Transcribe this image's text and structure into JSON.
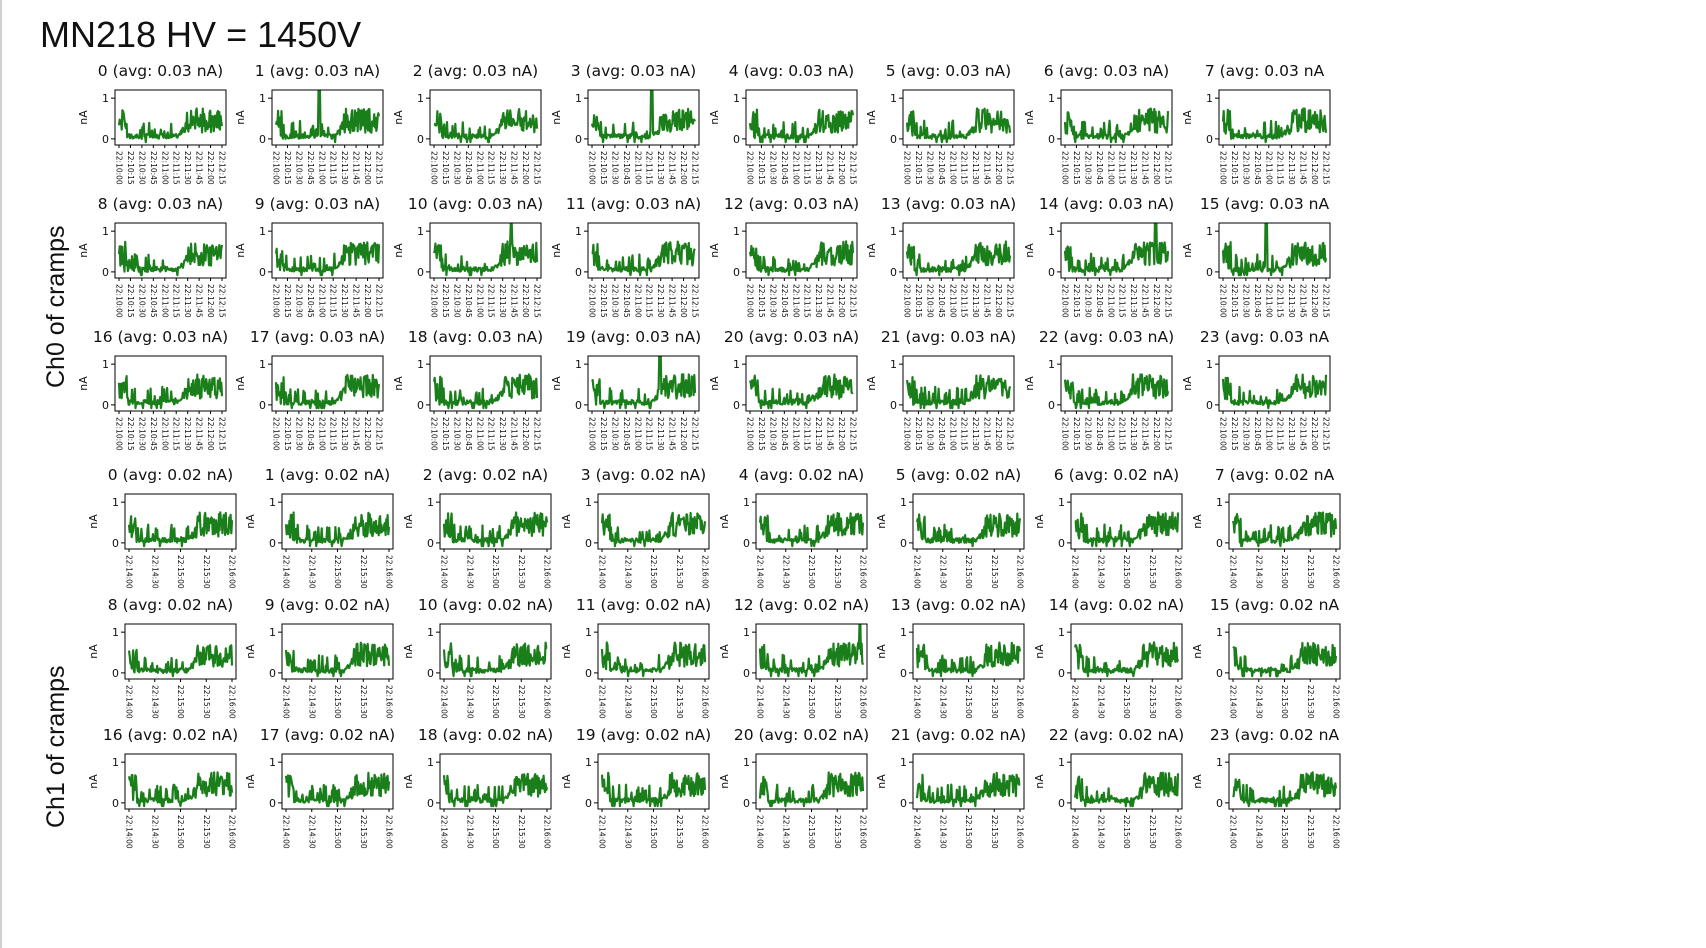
{
  "slide": {
    "title": "MN218 HV = 1450V",
    "group_labels": {
      "ch0": "Ch0 of cramps",
      "ch1": "Ch1 of cramps"
    }
  },
  "colors": {
    "series": "#1a7f1a",
    "axis": "#000000",
    "background": "#ffffff"
  },
  "chart_data": [
    {
      "group": "Ch0 of cramps",
      "type": "line",
      "ylabel": "nA",
      "ylim": [
        -0.15,
        1.2
      ],
      "yticks": [
        0,
        1
      ],
      "xticks": [
        "22:10:00",
        "22:10:15",
        "22:10:30",
        "22:10:45",
        "22:11:00",
        "22:11:15",
        "22:11:30",
        "22:11:45",
        "22:12:00",
        "22:12:15"
      ],
      "panels": [
        {
          "channel": 0,
          "title": "0 (avg: 0.03 nA)",
          "spike_at": null
        },
        {
          "channel": 1,
          "title": "1 (avg: 0.03 nA)",
          "spike_at": 0.42
        },
        {
          "channel": 2,
          "title": "2 (avg: 0.03 nA)",
          "spike_at": null
        },
        {
          "channel": 3,
          "title": "3 (avg: 0.03 nA)",
          "spike_at": 0.58
        },
        {
          "channel": 4,
          "title": "4 (avg: 0.03 nA)",
          "spike_at": null
        },
        {
          "channel": 5,
          "title": "5 (avg: 0.03 nA)",
          "spike_at": null
        },
        {
          "channel": 6,
          "title": "6 (avg: 0.03 nA)",
          "spike_at": null
        },
        {
          "channel": 7,
          "title": "7 (avg: 0.03 nA",
          "spike_at": null
        },
        {
          "channel": 8,
          "title": "8 (avg: 0.03 nA)",
          "spike_at": null
        },
        {
          "channel": 9,
          "title": "9 (avg: 0.03 nA)",
          "spike_at": null
        },
        {
          "channel": 10,
          "title": "10 (avg: 0.03 nA)",
          "spike_at": 0.75
        },
        {
          "channel": 11,
          "title": "11 (avg: 0.03 nA)",
          "spike_at": null
        },
        {
          "channel": 12,
          "title": "12 (avg: 0.03 nA)",
          "spike_at": null
        },
        {
          "channel": 13,
          "title": "13 (avg: 0.03 nA)",
          "spike_at": null
        },
        {
          "channel": 14,
          "title": "14 (avg: 0.03 nA)",
          "spike_at": 0.88
        },
        {
          "channel": 15,
          "title": "15 (avg: 0.03 nA",
          "spike_at": 0.42
        },
        {
          "channel": 16,
          "title": "16 (avg: 0.03 nA)",
          "spike_at": null
        },
        {
          "channel": 17,
          "title": "17 (avg: 0.03 nA)",
          "spike_at": null
        },
        {
          "channel": 18,
          "title": "18 (avg: 0.03 nA)",
          "spike_at": null
        },
        {
          "channel": 19,
          "title": "19 (avg: 0.03 nA)",
          "spike_at": 0.66
        },
        {
          "channel": 20,
          "title": "20 (avg: 0.03 nA)",
          "spike_at": null
        },
        {
          "channel": 21,
          "title": "21 (avg: 0.03 nA)",
          "spike_at": null
        },
        {
          "channel": 22,
          "title": "22 (avg: 0.03 nA)",
          "spike_at": null
        },
        {
          "channel": 23,
          "title": "23 (avg: 0.03 nA",
          "spike_at": null
        }
      ]
    },
    {
      "group": "Ch1 of cramps",
      "type": "line",
      "ylabel": "nA",
      "ylim": [
        -0.15,
        1.2
      ],
      "yticks": [
        0,
        1
      ],
      "xticks": [
        "22:14:00",
        "22:14:30",
        "22:15:00",
        "22:15:30",
        "22:16:00"
      ],
      "panels": [
        {
          "channel": 0,
          "title": "0 (avg: 0.02 nA)",
          "spike_at": null
        },
        {
          "channel": 1,
          "title": "1 (avg: 0.02 nA)",
          "spike_at": null
        },
        {
          "channel": 2,
          "title": "2 (avg: 0.02 nA)",
          "spike_at": null
        },
        {
          "channel": 3,
          "title": "3 (avg: 0.02 nA)",
          "spike_at": null
        },
        {
          "channel": 4,
          "title": "4 (avg: 0.02 nA)",
          "spike_at": null
        },
        {
          "channel": 5,
          "title": "5 (avg: 0.02 nA)",
          "spike_at": null
        },
        {
          "channel": 6,
          "title": "6 (avg: 0.02 nA)",
          "spike_at": null
        },
        {
          "channel": 7,
          "title": "7 (avg: 0.02 nA",
          "spike_at": null
        },
        {
          "channel": 8,
          "title": "8 (avg: 0.02 nA)",
          "spike_at": null
        },
        {
          "channel": 9,
          "title": "9 (avg: 0.02 nA)",
          "spike_at": null
        },
        {
          "channel": 10,
          "title": "10 (avg: 0.02 nA)",
          "spike_at": null
        },
        {
          "channel": 11,
          "title": "11 (avg: 0.02 nA)",
          "spike_at": null
        },
        {
          "channel": 12,
          "title": "12 (avg: 0.02 nA)",
          "spike_at": 0.97
        },
        {
          "channel": 13,
          "title": "13 (avg: 0.02 nA)",
          "spike_at": null
        },
        {
          "channel": 14,
          "title": "14 (avg: 0.02 nA)",
          "spike_at": null
        },
        {
          "channel": 15,
          "title": "15 (avg: 0.02 nA",
          "spike_at": null
        },
        {
          "channel": 16,
          "title": "16 (avg: 0.02 nA)",
          "spike_at": null
        },
        {
          "channel": 17,
          "title": "17 (avg: 0.02 nA)",
          "spike_at": null
        },
        {
          "channel": 18,
          "title": "18 (avg: 0.02 nA)",
          "spike_at": null
        },
        {
          "channel": 19,
          "title": "19 (avg: 0.02 nA)",
          "spike_at": null
        },
        {
          "channel": 20,
          "title": "20 (avg: 0.02 nA)",
          "spike_at": null
        },
        {
          "channel": 21,
          "title": "21 (avg: 0.02 nA)",
          "spike_at": null
        },
        {
          "channel": 22,
          "title": "22 (avg: 0.02 nA)",
          "spike_at": null
        },
        {
          "channel": 23,
          "title": "23 (avg: 0.02 nA",
          "spike_at": null
        }
      ]
    }
  ]
}
